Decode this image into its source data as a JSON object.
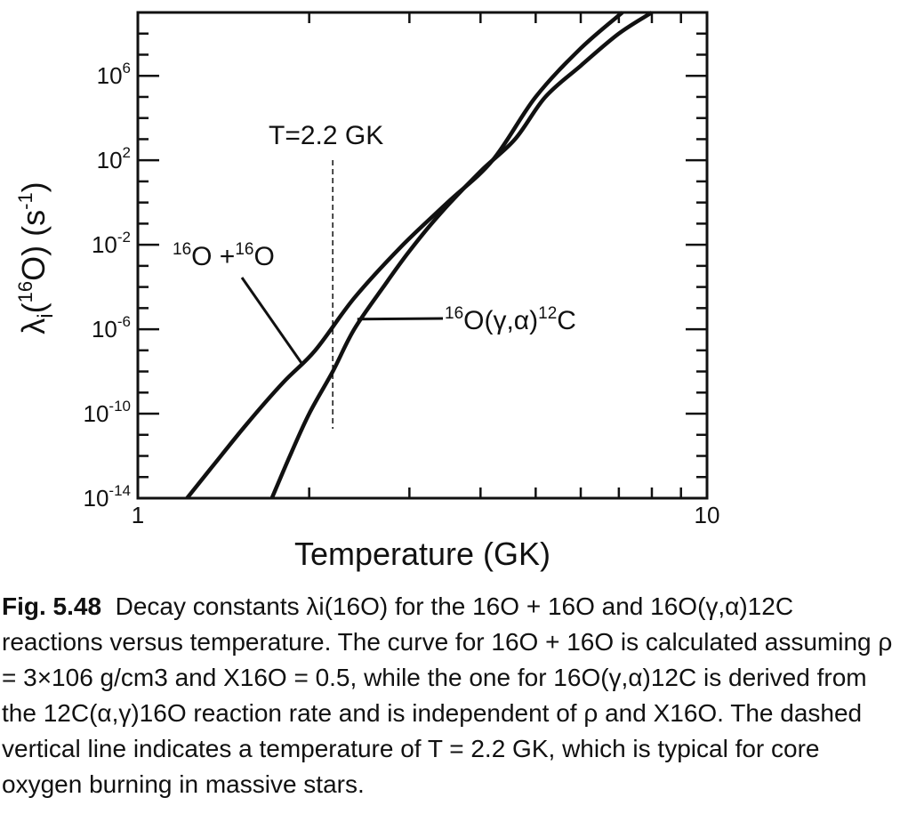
{
  "chart_data": {
    "type": "line",
    "xscale": "log",
    "yscale": "log",
    "xlim": [
      1,
      10
    ],
    "ylim": [
      1e-14,
      1000000000.0
    ],
    "xlabel": "Temperature  (GK)",
    "ylabel": "λi(16O)  (s-1)",
    "x_tick_labels": [
      "1",
      "10"
    ],
    "y_tick_labels": [
      "10-14",
      "10-10",
      "10-6",
      "10-2",
      "102",
      "106"
    ],
    "series": [
      {
        "name": "16O + 16O",
        "color": "#111111",
        "x": [
          1.22,
          1.35,
          1.55,
          1.8,
          2.05,
          2.4,
          2.9,
          3.5,
          4.2,
          5.0,
          6.0,
          7.1
        ],
        "y": [
          1e-14,
          3e-13,
          3e-11,
          3e-09,
          1e-07,
          3e-05,
          0.008,
          1,
          100,
          100000.0,
          20000000.0,
          1000000000.0
        ]
      },
      {
        "name": "16O(γ,α)12C",
        "color": "#111111",
        "x": [
          1.72,
          1.85,
          2.0,
          2.2,
          2.4,
          2.7,
          3.0,
          3.4,
          4.0,
          4.6,
          5.2,
          6.0,
          7.0,
          8.0
        ],
        "y": [
          1e-14,
          1e-12,
          1e-10,
          1e-08,
          1e-06,
          0.0001,
          0.005,
          0.3,
          30,
          1000,
          100000.0,
          3000000.0,
          100000000.0,
          1000000000.0
        ]
      }
    ],
    "vline": {
      "x": 2.2,
      "label": "T=2.2 GK",
      "style": "dashed"
    },
    "annotations": {
      "oo": {
        "label": "16O + 16O",
        "x": 1.65,
        "y": 0.005
      },
      "ga": {
        "label": "16O(γ,α)12C",
        "x": 4.2,
        "y": 5e-06
      }
    }
  },
  "caption": {
    "figure_label": "Fig. 5.48",
    "text": "Decay constants λi(16O) for the 16O + 16O and 16O(γ,α)12C reactions versus temperature. The curve for 16O + 16O is calculated assuming ρ = 3×106 g/cm3 and X16O = 0.5, while the one for 16O(γ,α)12C is derived from the 12C(α,γ)16O reaction rate and is independent of ρ and X16O. The dashed vertical line indicates a temperature of T = 2.2 GK, which is typical for core oxygen burning in massive stars."
  }
}
